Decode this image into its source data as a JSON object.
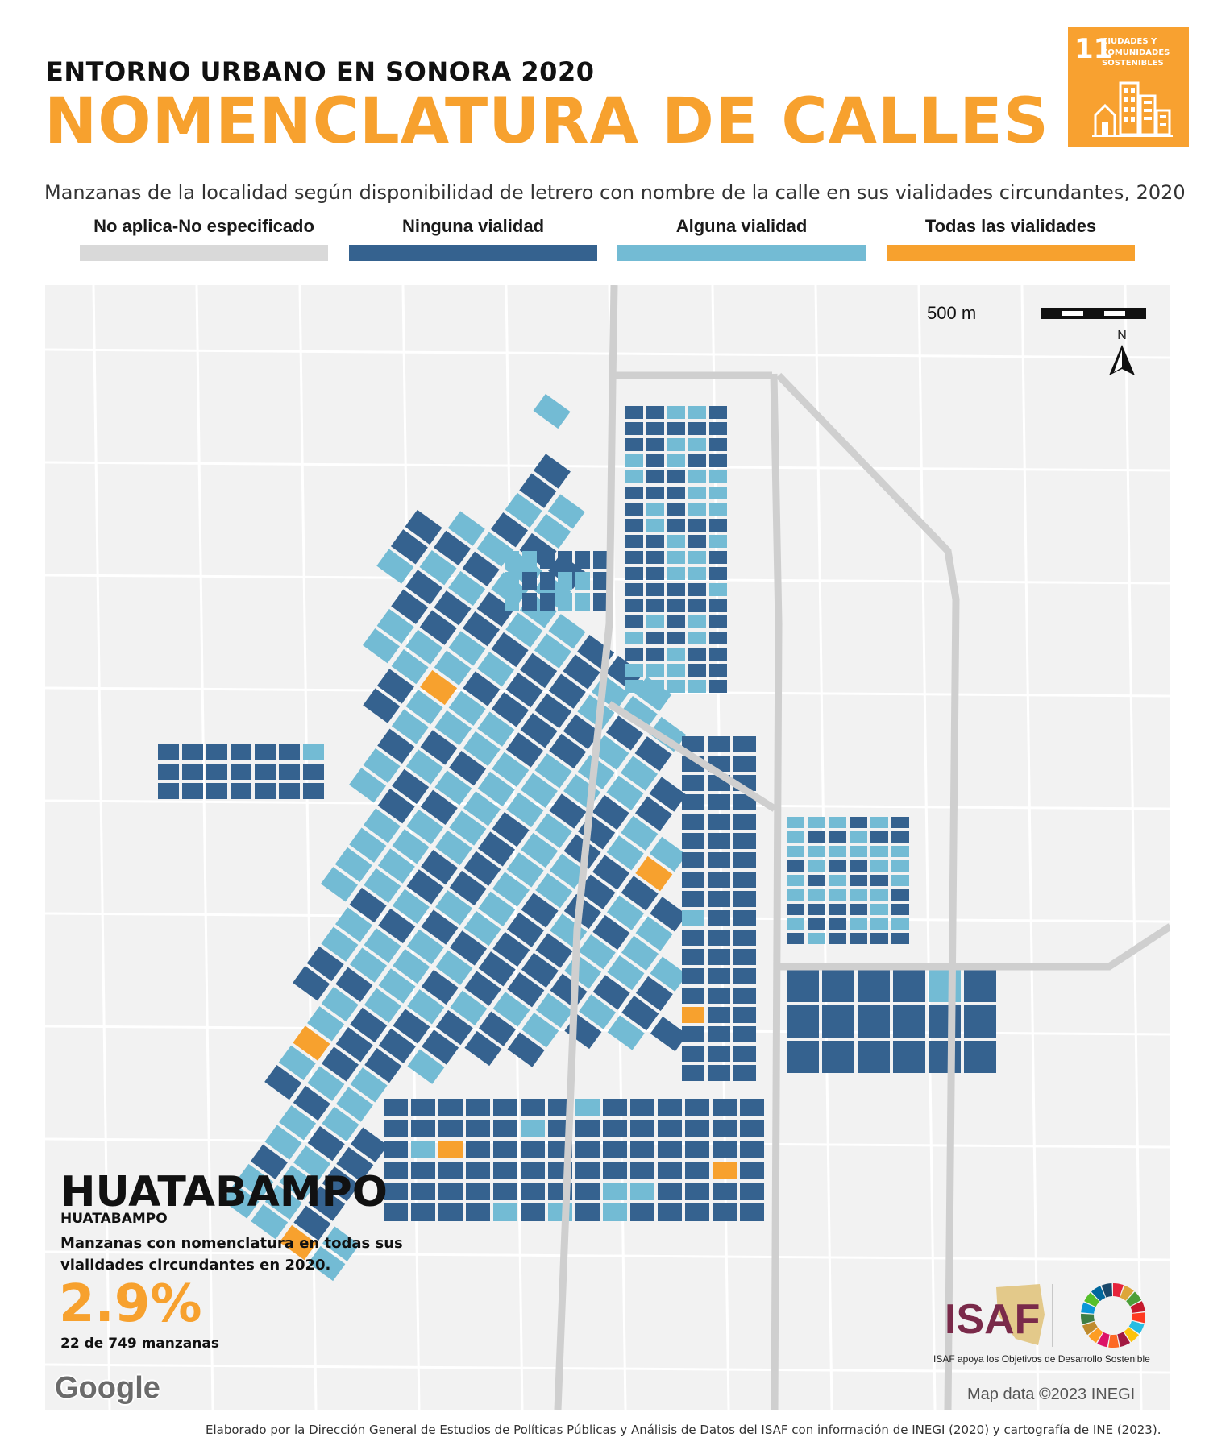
{
  "header": {
    "supertitle": "ENTORNO URBANO EN SONORA 2020",
    "title": "NOMENCLATURA DE CALLES",
    "subtitle": "Manzanas de la localidad según disponibilidad de letrero con nombre de la calle en sus vialidades circundantes, 2020"
  },
  "sdg_badge": {
    "number": "11",
    "text": "CIUDADES Y COMUNIDADES SOSTENIBLES",
    "color": "#f8a130",
    "icon": "city-buildings-icon"
  },
  "legend": [
    {
      "label": "No aplica-No especificado",
      "color": "#d9d9d9"
    },
    {
      "label": "Ninguna vialidad",
      "color": "#35628f"
    },
    {
      "label": "Alguna vialidad",
      "color": "#73bbd4"
    },
    {
      "label": "Todas las vialidades",
      "color": "#f7a12e"
    }
  ],
  "map": {
    "scale_label": "500 m",
    "north_label": "N",
    "attribution_logo": "Google",
    "attribution": "Map data ©2023 INEGI"
  },
  "place": {
    "name": "HUATABAMPO",
    "locality": "HUATABAMPO"
  },
  "stat": {
    "description": "Manzanas con nomenclatura en todas sus vialidades circundantes en 2020.",
    "percent": "2.9%",
    "count": "22 de 749 manzanas"
  },
  "logos": {
    "isaf": "ISAF",
    "isaf_caption": "ISAF apoya los Objetivos de Desarrollo Sostenible",
    "sdg_wheel": "sdg-wheel-icon"
  },
  "footer": "Elaborado por la Dirección General de Estudios de Políticas Públicas y Análisis de Datos del ISAF con información de INEGI (2020) y cartografía de INE (2023)."
}
